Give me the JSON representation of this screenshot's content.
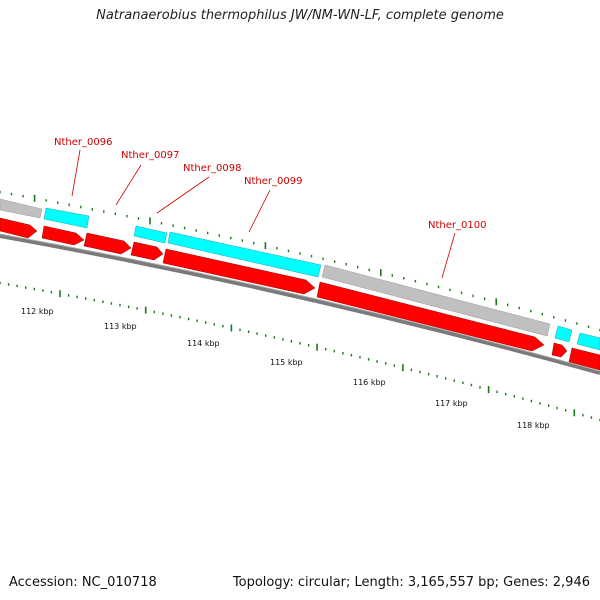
{
  "title": "Natranaerobius thermophilus JW/NM-WN-LF, complete genome",
  "footer": {
    "accession": "Accession: NC_010718",
    "stats": "Topology: circular; Length: 3,165,557 bp; Genes: 2,946"
  },
  "colors": {
    "forward_cds": "#ff0000",
    "reverse_cds": "#00ffff",
    "non_cds": "#c0c0c0",
    "backbone": "#808080",
    "gene_label": "#cc0000",
    "ticks": "#1a7a1a"
  },
  "scale_labels": [
    {
      "kbp": 112,
      "text": "112 kbp"
    },
    {
      "kbp": 113,
      "text": "113 kbp"
    },
    {
      "kbp": 114,
      "text": "114 kbp"
    },
    {
      "kbp": 115,
      "text": "115 kbp"
    },
    {
      "kbp": 116,
      "text": "116 kbp"
    },
    {
      "kbp": 117,
      "text": "117 kbp"
    },
    {
      "kbp": 118,
      "text": "118 kbp"
    }
  ],
  "gene_labels": [
    "Nther_0096",
    "Nther_0097",
    "Nther_0098",
    "Nther_0099",
    "Nther_0100"
  ]
}
